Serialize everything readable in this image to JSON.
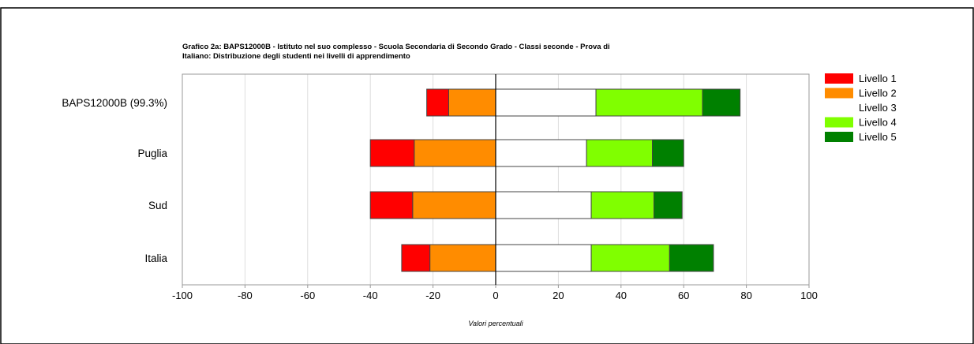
{
  "chart_data": {
    "type": "bar",
    "orientation": "horizontal",
    "stacked": "diverging",
    "title_line1": "Grafico 2a: BAPS12000B - Istituto nel suo complesso - Scuola Secondaria di Secondo Grado - Classi seconde - Prova di",
    "title_line2": "Italiano: Distribuzione degli studenti nei livelli di apprendimento",
    "xlabel": "Valori percentuali",
    "ylabel": "",
    "xlim": [
      -100,
      100
    ],
    "xticks": [
      -100,
      -80,
      -60,
      -40,
      -20,
      0,
      20,
      40,
      60,
      80,
      100
    ],
    "grid": true,
    "legend_position": "right",
    "categories": [
      "BAPS12000B (99.3%)",
      "Puglia",
      "Sud",
      "Italia"
    ],
    "series": [
      {
        "name": "Livello 1",
        "color": "#ff0000",
        "side": "negative",
        "values": [
          7,
          14,
          13.5,
          9
        ]
      },
      {
        "name": "Livello 2",
        "color": "#ff8c00",
        "side": "negative",
        "values": [
          15,
          26,
          26.5,
          21
        ]
      },
      {
        "name": "Livello 3",
        "color": "#ffffff",
        "side": "positive",
        "values": [
          32,
          29,
          30.5,
          30.5
        ]
      },
      {
        "name": "Livello 4",
        "color": "#80ff00",
        "side": "positive",
        "values": [
          34,
          21,
          20,
          25
        ]
      },
      {
        "name": "Livello 5",
        "color": "#008000",
        "side": "positive",
        "values": [
          12,
          10,
          9,
          14
        ]
      }
    ]
  }
}
